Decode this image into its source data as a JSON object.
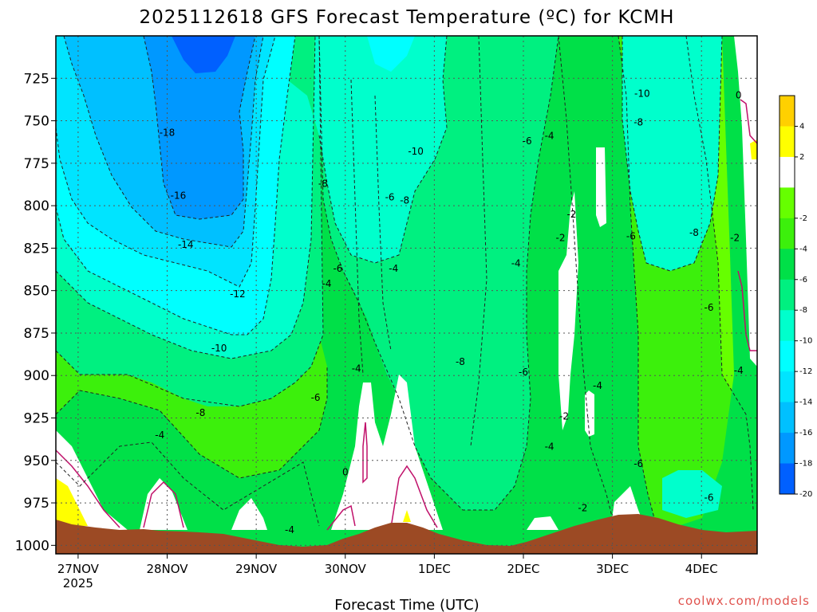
{
  "page": {
    "title": "2025112618 GFS Forecast Temperature (ºC) for KCMH",
    "xlabel": "Forecast Time (UTC)",
    "credit": "coolwx.com/models"
  },
  "colors": {
    "terrain": "#9c4a24",
    "zero_contour": "#c0106a",
    "background_band": "#66ff00"
  },
  "chart_data": {
    "type": "heatmap",
    "title": "2025112618 GFS Forecast Temperature (ºC) for KCMH",
    "xlabel": "Forecast Time (UTC)",
    "ylabel": "",
    "y_axis": {
      "inverted": true,
      "ylim": [
        1005,
        700
      ],
      "ticks": [
        725,
        750,
        775,
        800,
        825,
        850,
        875,
        900,
        925,
        950,
        975,
        1000
      ]
    },
    "x_axis": {
      "xlim_hours_from_27nov00": [
        -6,
        183
      ],
      "ticks": [
        {
          "label": "27NOV",
          "sublabel": "2025",
          "hour": 0
        },
        {
          "label": "28NOV",
          "hour": 24
        },
        {
          "label": "29NOV",
          "hour": 48
        },
        {
          "label": "30NOV",
          "hour": 72
        },
        {
          "label": "1DEC",
          "hour": 96
        },
        {
          "label": "2DEC",
          "hour": 120
        },
        {
          "label": "3DEC",
          "hour": 144
        },
        {
          "label": "4DEC",
          "hour": 168
        }
      ]
    },
    "grid": true,
    "colorbar": {
      "position": "right",
      "levels": [
        {
          "label": "4",
          "color": "#ffd000"
        },
        {
          "label": "2",
          "color": "#ffff00"
        },
        {
          "label": "",
          "color": "#ffffff"
        },
        {
          "label": "-2",
          "color": "#66ff00"
        },
        {
          "label": "-4",
          "color": "#3cf00c"
        },
        {
          "label": "-6",
          "color": "#00e048"
        },
        {
          "label": "-8",
          "color": "#00f080"
        },
        {
          "label": "-10",
          "color": "#00ffcc"
        },
        {
          "label": "-12",
          "color": "#00ffff"
        },
        {
          "label": "-14",
          "color": "#00e4ff"
        },
        {
          "label": "-16",
          "color": "#00c0ff"
        },
        {
          "label": "-18",
          "color": "#0098ff"
        },
        {
          "label": "-20",
          "color": "#0060ff"
        }
      ]
    },
    "contour_labels": [
      {
        "text": "-18",
        "hour": 24,
        "p": 757
      },
      {
        "text": "-16",
        "hour": 27,
        "p": 794
      },
      {
        "text": "-14",
        "hour": 29,
        "p": 823
      },
      {
        "text": "-12",
        "hour": 43,
        "p": 852
      },
      {
        "text": "-10",
        "hour": 38,
        "p": 884
      },
      {
        "text": "-10",
        "hour": 91,
        "p": 768
      },
      {
        "text": "-10",
        "hour": 152,
        "p": 734
      },
      {
        "text": "-8",
        "hour": 33,
        "p": 922
      },
      {
        "text": "-8",
        "hour": 66,
        "p": 787
      },
      {
        "text": "-8",
        "hour": 88,
        "p": 797
      },
      {
        "text": "-8",
        "hour": 103,
        "p": 892
      },
      {
        "text": "-8",
        "hour": 151,
        "p": 751
      },
      {
        "text": "-8",
        "hour": 166,
        "p": 816
      },
      {
        "text": "-6",
        "hour": 70,
        "p": 837
      },
      {
        "text": "-6",
        "hour": 84,
        "p": 795
      },
      {
        "text": "-6",
        "hour": 64,
        "p": 913
      },
      {
        "text": "-6",
        "hour": 121,
        "p": 762
      },
      {
        "text": "-6",
        "hour": 120,
        "p": 898
      },
      {
        "text": "-6",
        "hour": 149,
        "p": 818
      },
      {
        "text": "-6",
        "hour": 151,
        "p": 952
      },
      {
        "text": "-6",
        "hour": 170,
        "p": 860
      },
      {
        "text": "-6",
        "hour": 170,
        "p": 972
      },
      {
        "text": "-4",
        "hour": 22,
        "p": 935
      },
      {
        "text": "-4",
        "hour": 67,
        "p": 846
      },
      {
        "text": "-4",
        "hour": 85,
        "p": 837
      },
      {
        "text": "-4",
        "hour": 75,
        "p": 896
      },
      {
        "text": "-4",
        "hour": 57,
        "p": 991
      },
      {
        "text": "-4",
        "hour": 127,
        "p": 759
      },
      {
        "text": "-4",
        "hour": 118,
        "p": 834
      },
      {
        "text": "-4",
        "hour": 140,
        "p": 906
      },
      {
        "text": "-4",
        "hour": 127,
        "p": 942
      },
      {
        "text": "-4",
        "hour": 178,
        "p": 897
      },
      {
        "text": "-2",
        "hour": 133,
        "p": 805
      },
      {
        "text": "-2",
        "hour": 130,
        "p": 819
      },
      {
        "text": "-2",
        "hour": 131,
        "p": 924
      },
      {
        "text": "-2",
        "hour": 136,
        "p": 978
      },
      {
        "text": "-2",
        "hour": 177,
        "p": 819
      },
      {
        "text": "0",
        "hour": 72,
        "p": 957
      },
      {
        "text": "0",
        "hour": 178,
        "p": 735
      }
    ]
  }
}
